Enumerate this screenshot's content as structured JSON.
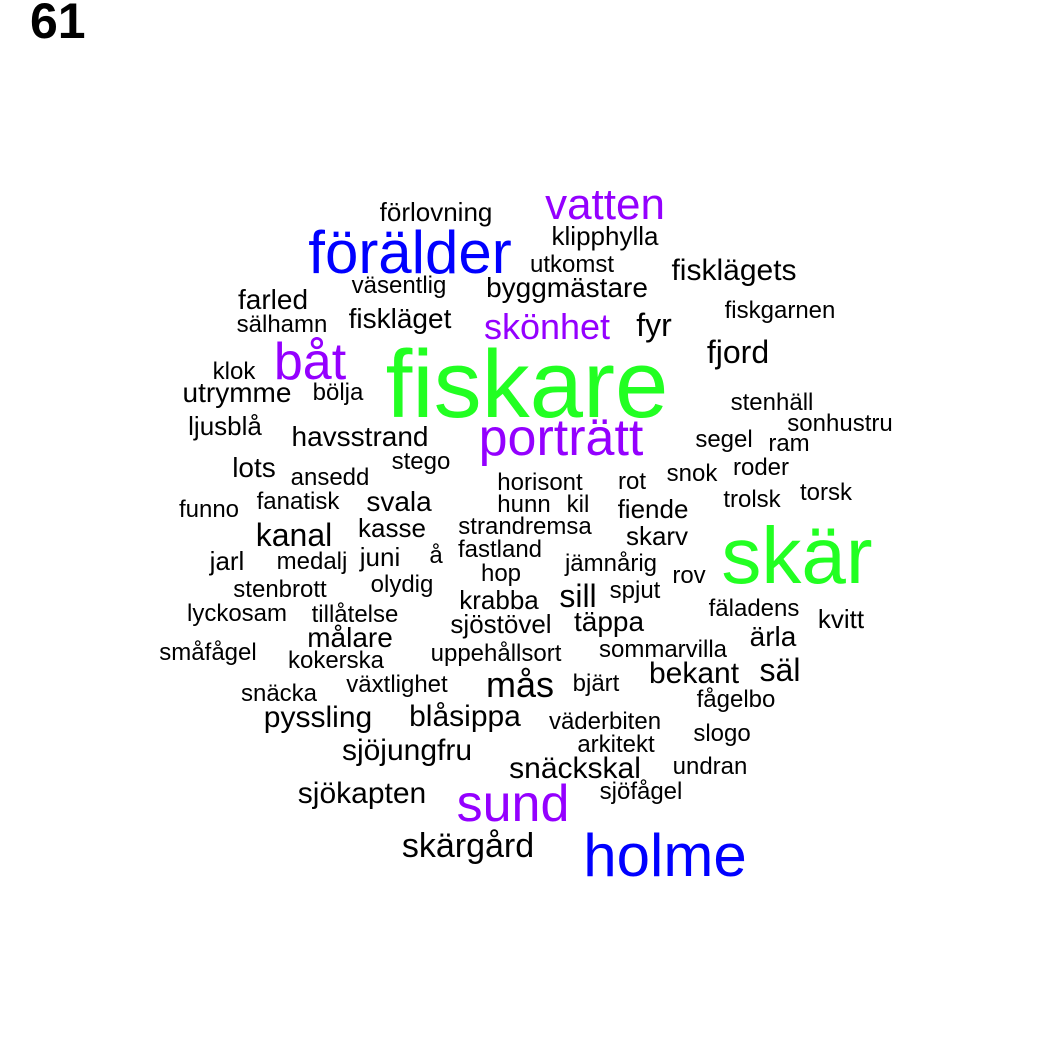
{
  "figure_label": "61",
  "colors": {
    "black": "#000000",
    "purple": "#9400ff",
    "blue": "#0000ff",
    "green": "#22ff22"
  },
  "words": [
    {
      "text": "fiskare",
      "color": "green"
    },
    {
      "text": "skär",
      "color": "green"
    },
    {
      "text": "holme",
      "color": "blue"
    },
    {
      "text": "förälder",
      "color": "blue"
    },
    {
      "text": "porträtt",
      "color": "purple"
    },
    {
      "text": "båt",
      "color": "purple"
    },
    {
      "text": "sund",
      "color": "purple"
    },
    {
      "text": "vatten",
      "color": "purple"
    },
    {
      "text": "skönhet",
      "color": "purple"
    },
    {
      "text": "förlovning",
      "color": "black"
    },
    {
      "text": "klipphylla",
      "color": "black"
    },
    {
      "text": "utkomst",
      "color": "black"
    },
    {
      "text": "fisklägets",
      "color": "black"
    },
    {
      "text": "väsentlig",
      "color": "black"
    },
    {
      "text": "byggmästare",
      "color": "black"
    },
    {
      "text": "farled",
      "color": "black"
    },
    {
      "text": "fiskgarnen",
      "color": "black"
    },
    {
      "text": "sälhamn",
      "color": "black"
    },
    {
      "text": "fiskläget",
      "color": "black"
    },
    {
      "text": "fyr",
      "color": "black"
    },
    {
      "text": "fjord",
      "color": "black"
    },
    {
      "text": "klok",
      "color": "black"
    },
    {
      "text": "utrymme",
      "color": "black"
    },
    {
      "text": "bölja",
      "color": "black"
    },
    {
      "text": "stenhäll",
      "color": "black"
    },
    {
      "text": "ljusblå",
      "color": "black"
    },
    {
      "text": "sonhustru",
      "color": "black"
    },
    {
      "text": "havsstrand",
      "color": "black"
    },
    {
      "text": "segel",
      "color": "black"
    },
    {
      "text": "ram",
      "color": "black"
    },
    {
      "text": "stego",
      "color": "black"
    },
    {
      "text": "lots",
      "color": "black"
    },
    {
      "text": "ansedd",
      "color": "black"
    },
    {
      "text": "horisont",
      "color": "black"
    },
    {
      "text": "rot",
      "color": "black"
    },
    {
      "text": "snok",
      "color": "black"
    },
    {
      "text": "roder",
      "color": "black"
    },
    {
      "text": "funno",
      "color": "black"
    },
    {
      "text": "fanatisk",
      "color": "black"
    },
    {
      "text": "svala",
      "color": "black"
    },
    {
      "text": "hunn",
      "color": "black"
    },
    {
      "text": "kil",
      "color": "black"
    },
    {
      "text": "fiende",
      "color": "black"
    },
    {
      "text": "trolsk",
      "color": "black"
    },
    {
      "text": "torsk",
      "color": "black"
    },
    {
      "text": "kanal",
      "color": "black"
    },
    {
      "text": "kasse",
      "color": "black"
    },
    {
      "text": "strandremsa",
      "color": "black"
    },
    {
      "text": "skarv",
      "color": "black"
    },
    {
      "text": "jarl",
      "color": "black"
    },
    {
      "text": "medalj",
      "color": "black"
    },
    {
      "text": "juni",
      "color": "black"
    },
    {
      "text": "å",
      "color": "black"
    },
    {
      "text": "fastland",
      "color": "black"
    },
    {
      "text": "jämnårig",
      "color": "black"
    },
    {
      "text": "hop",
      "color": "black"
    },
    {
      "text": "rov",
      "color": "black"
    },
    {
      "text": "stenbrott",
      "color": "black"
    },
    {
      "text": "olydig",
      "color": "black"
    },
    {
      "text": "sill",
      "color": "black"
    },
    {
      "text": "spjut",
      "color": "black"
    },
    {
      "text": "krabba",
      "color": "black"
    },
    {
      "text": "lyckosam",
      "color": "black"
    },
    {
      "text": "tillåtelse",
      "color": "black"
    },
    {
      "text": "fäladens",
      "color": "black"
    },
    {
      "text": "kvitt",
      "color": "black"
    },
    {
      "text": "sjöstövel",
      "color": "black"
    },
    {
      "text": "täppa",
      "color": "black"
    },
    {
      "text": "målare",
      "color": "black"
    },
    {
      "text": "ärla",
      "color": "black"
    },
    {
      "text": "småfågel",
      "color": "black"
    },
    {
      "text": "kokerska",
      "color": "black"
    },
    {
      "text": "uppehållsort",
      "color": "black"
    },
    {
      "text": "sommarvilla",
      "color": "black"
    },
    {
      "text": "säl",
      "color": "black"
    },
    {
      "text": "bekant",
      "color": "black"
    },
    {
      "text": "växtlighet",
      "color": "black"
    },
    {
      "text": "mås",
      "color": "black"
    },
    {
      "text": "bjärt",
      "color": "black"
    },
    {
      "text": "snäcka",
      "color": "black"
    },
    {
      "text": "fågelbo",
      "color": "black"
    },
    {
      "text": "pyssling",
      "color": "black"
    },
    {
      "text": "blåsippa",
      "color": "black"
    },
    {
      "text": "väderbiten",
      "color": "black"
    },
    {
      "text": "slogo",
      "color": "black"
    },
    {
      "text": "arkitekt",
      "color": "black"
    },
    {
      "text": "sjöjungfru",
      "color": "black"
    },
    {
      "text": "undran",
      "color": "black"
    },
    {
      "text": "snäckskal",
      "color": "black"
    },
    {
      "text": "sjöfågel",
      "color": "black"
    },
    {
      "text": "sjökapten",
      "color": "black"
    },
    {
      "text": "skärgård",
      "color": "black"
    }
  ]
}
